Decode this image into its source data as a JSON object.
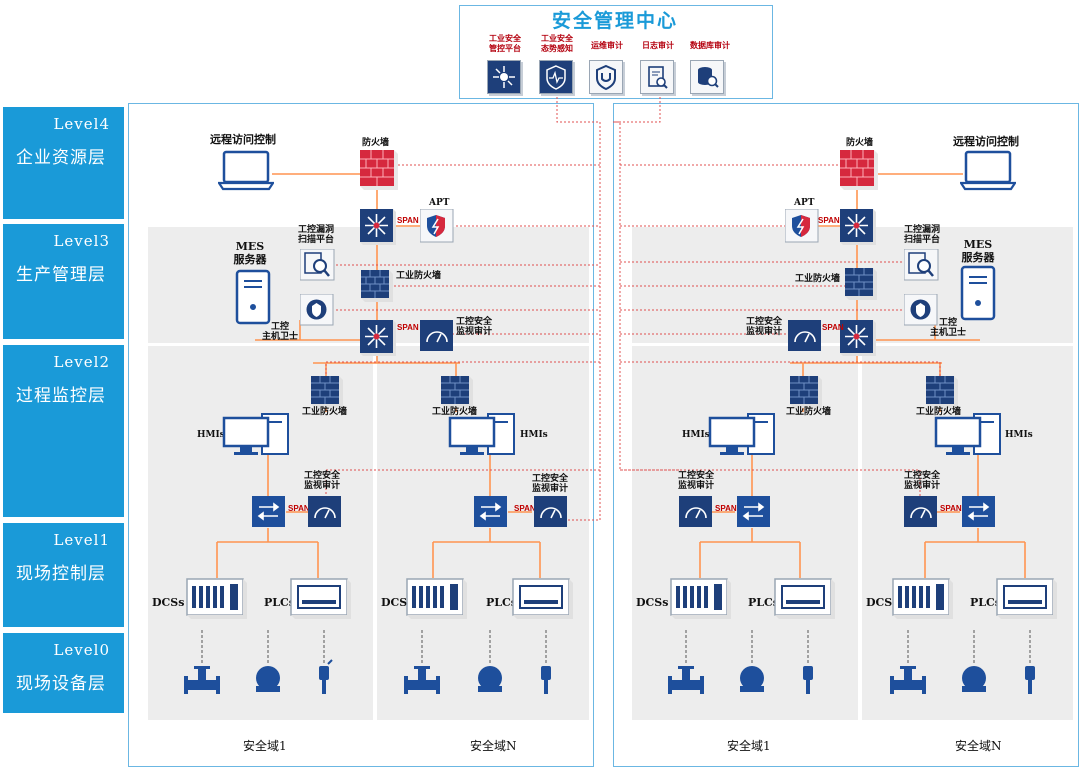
{
  "center": {
    "title": "安全管理中心",
    "items": [
      {
        "label": "工业安全\n管控平台",
        "icon": "hub-icon"
      },
      {
        "label": "工业安全\n态势感知",
        "icon": "shield-pulse-icon"
      },
      {
        "label": "运维审计",
        "icon": "shield-check-icon"
      },
      {
        "label": "日志审计",
        "icon": "log-search-icon"
      },
      {
        "label": "数据库审计",
        "icon": "database-search-icon"
      }
    ]
  },
  "levels": [
    {
      "code": "Level4",
      "name": "企业资源层"
    },
    {
      "code": "Level3",
      "name": "生产管理层"
    },
    {
      "code": "Level2",
      "name": "过程监控层"
    },
    {
      "code": "Level1",
      "name": "现场控制层"
    },
    {
      "code": "Level0",
      "name": "现场设备层"
    }
  ],
  "labels": {
    "remote_access": "远程访问控制",
    "firewall": "防火墙",
    "apt": "APT",
    "span": "SPAN",
    "vuln_scan": "工控漏洞\n扫描平台",
    "mes": "MES\n服务器",
    "ind_firewall": "工业防火墙",
    "host_guard": "工控\n主机卫士",
    "monitor_audit": "工控安全\n监视审计",
    "hmis": "HMIs",
    "dcss": "DCSs",
    "plcs": "PLCs"
  },
  "zones": [
    "安全域1",
    "安全域N",
    "安全域1",
    "安全域N"
  ]
}
